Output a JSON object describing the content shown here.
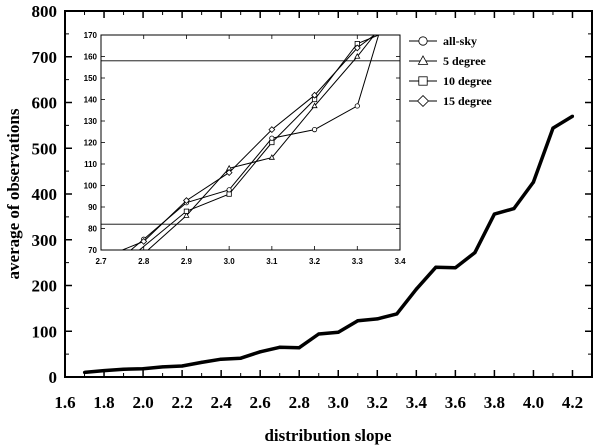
{
  "chart_data": [
    {
      "type": "line",
      "title": "",
      "xlabel": "distribution slope",
      "ylabel": "average of observations",
      "xlim": [
        1.6,
        4.3
      ],
      "ylim": [
        0,
        800
      ],
      "xticks": [
        1.6,
        1.8,
        2.0,
        2.2,
        2.4,
        2.6,
        2.8,
        3.0,
        3.2,
        3.4,
        3.6,
        3.8,
        4.0,
        4.2
      ],
      "xtick_labels": [
        "1.6",
        "1.8",
        "2.0",
        "2.2",
        "2.4",
        "2.6",
        "2.8",
        "3.0",
        "3.2",
        "3.4",
        "3.6",
        "3.8",
        "4.0",
        "4.2"
      ],
      "yticks": [
        0,
        100,
        200,
        300,
        400,
        500,
        600,
        700,
        800
      ],
      "ytick_labels": [
        "0",
        "100",
        "200",
        "300",
        "400",
        "500",
        "600",
        "700",
        "800"
      ],
      "grid": false,
      "color": "#000000",
      "series": [
        {
          "x": [
            1.7,
            1.8,
            1.9,
            2.0,
            2.1,
            2.2,
            2.3,
            2.4,
            2.5,
            2.6,
            2.7,
            2.8,
            2.9,
            3.0,
            3.1,
            3.2,
            3.3,
            3.4,
            3.5,
            3.6,
            3.7,
            3.8,
            3.9,
            4.0,
            4.1,
            4.2
          ],
          "values": [
            10,
            14,
            17,
            18,
            22,
            24,
            32,
            39,
            41,
            55,
            65,
            64,
            94,
            98,
            123,
            127,
            138,
            192,
            240,
            239,
            272,
            356,
            368,
            426,
            544,
            570
          ]
        }
      ]
    },
    {
      "type": "line",
      "title": "",
      "xlim": [
        2.7,
        3.4
      ],
      "ylim": [
        70,
        170
      ],
      "xticks": [
        2.7,
        2.8,
        2.9,
        3.0,
        3.1,
        3.2,
        3.3,
        3.4
      ],
      "xtick_labels": [
        "2.7",
        "2.8",
        "2.9",
        "3.0",
        "3.1",
        "3.2",
        "3.3",
        "3.4"
      ],
      "yticks": [
        70,
        80,
        90,
        100,
        110,
        120,
        130,
        140,
        150,
        160,
        170
      ],
      "ytick_labels": [
        "70",
        "80",
        "90",
        "100",
        "110",
        "120",
        "130",
        "140",
        "150",
        "160",
        "170"
      ],
      "reference_lines_y": [
        82,
        158
      ],
      "legend_position": "right",
      "color": "#000000",
      "series": [
        {
          "name": "all-sky",
          "marker": "circle",
          "x": [
            2.77,
            2.8,
            2.9,
            3.0,
            3.1,
            3.2,
            3.3,
            3.35
          ],
          "values": [
            70,
            75,
            92,
            98,
            122,
            126,
            137,
            170
          ]
        },
        {
          "name": "5 degree",
          "marker": "triangle",
          "x": [
            2.81,
            2.9,
            3.0,
            3.1,
            3.2,
            3.3,
            3.34
          ],
          "values": [
            70,
            86,
            108,
            113,
            137,
            160,
            170
          ]
        },
        {
          "name": "10 degree",
          "marker": "square",
          "x": [
            2.79,
            2.9,
            3.0,
            3.1,
            3.2,
            3.3,
            3.35
          ],
          "values": [
            70,
            88,
            96,
            120,
            140,
            166,
            170
          ]
        },
        {
          "name": "15 degree",
          "marker": "diamond",
          "x": [
            2.75,
            2.8,
            2.9,
            3.0,
            3.1,
            3.2,
            3.3,
            3.34
          ],
          "values": [
            70,
            74,
            93,
            106,
            126,
            142,
            164,
            170
          ]
        }
      ]
    }
  ]
}
